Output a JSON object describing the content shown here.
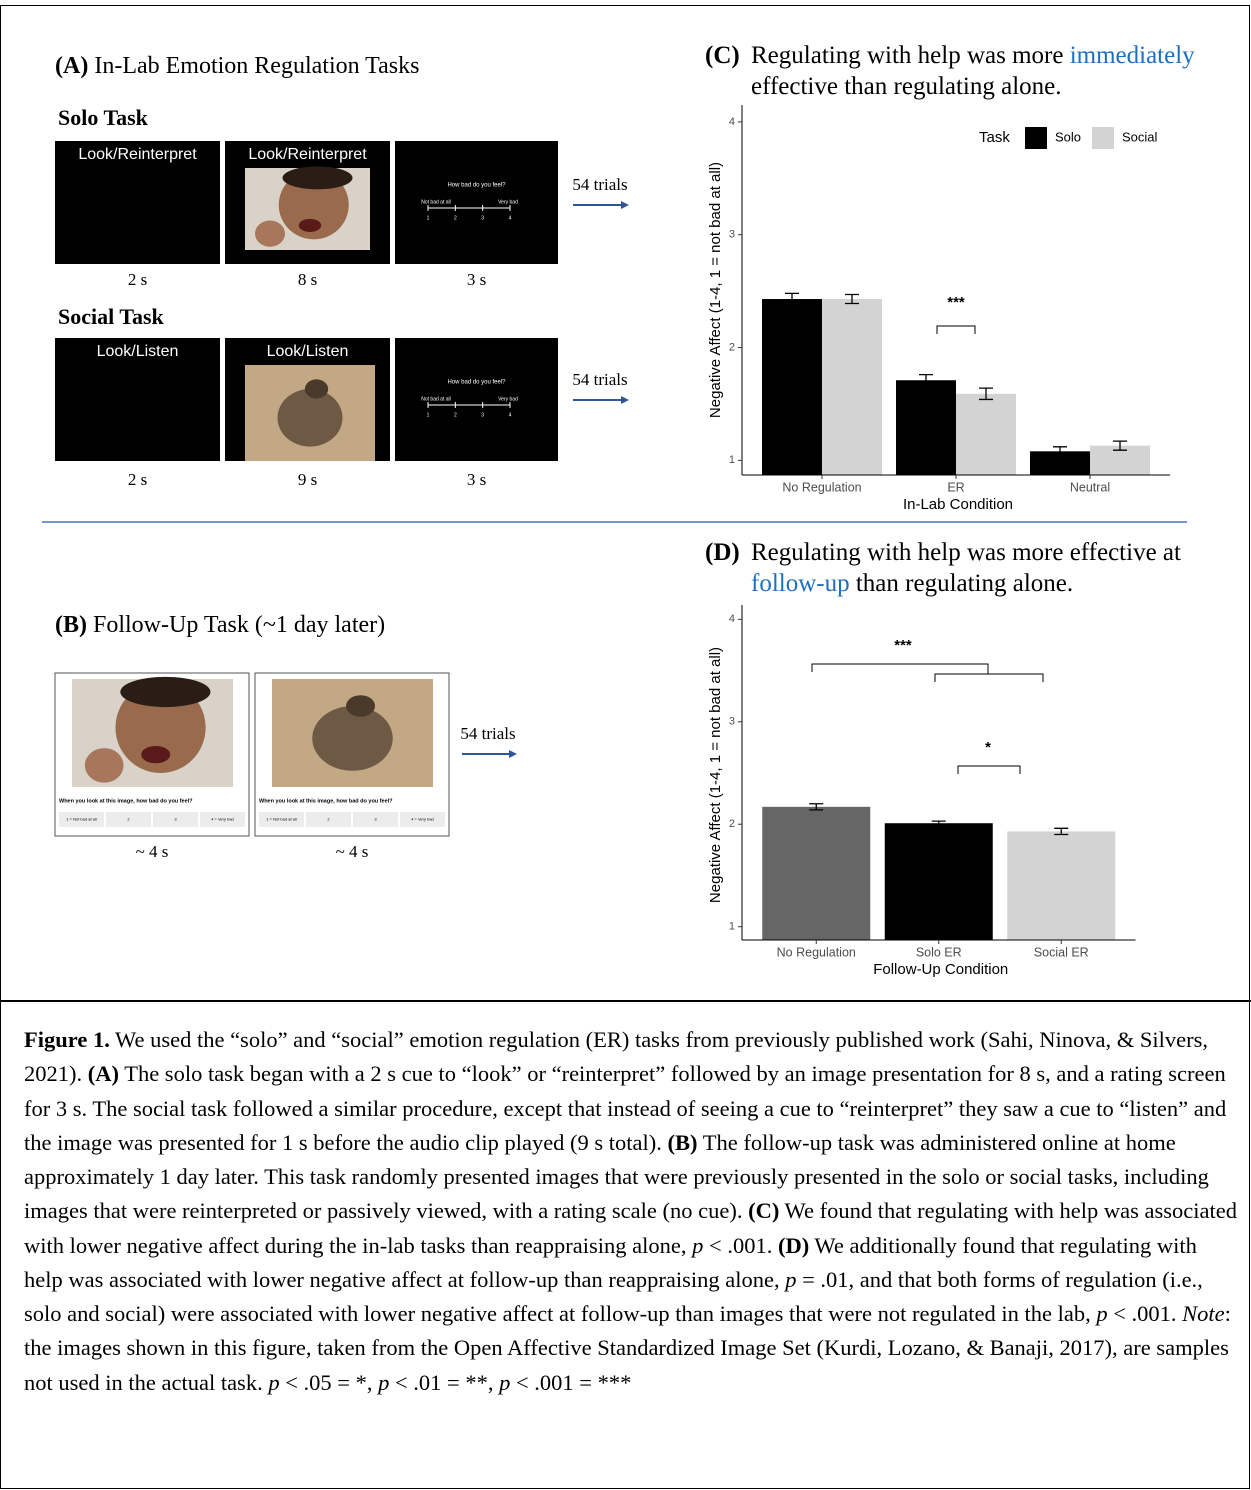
{
  "panel_a": {
    "label": "(A)",
    "title": "In-Lab Emotion Regulation Tasks",
    "tasks": [
      {
        "name": "Solo Task",
        "trials": "54 trials",
        "screens": [
          {
            "cue": "Look/Reinterpret",
            "duration": "2 s"
          },
          {
            "cue": "Look/Reinterpret",
            "duration": "8 s"
          },
          {
            "rating": {
              "question": "How bad do you feel?",
              "low": "Not bad at all",
              "high": "Very bad",
              "points": [
                "1",
                "2",
                "3",
                "4"
              ]
            },
            "duration": "3 s"
          }
        ]
      },
      {
        "name": "Social Task",
        "trials": "54 trials",
        "screens": [
          {
            "cue": "Look/Listen",
            "duration": "2 s"
          },
          {
            "cue": "Look/Listen",
            "duration": "9 s"
          },
          {
            "rating": {
              "question": "How bad do you feel?",
              "low": "Not bad at all",
              "high": "Very bad",
              "points": [
                "1",
                "2",
                "3",
                "4"
              ]
            },
            "duration": "3 s"
          }
        ]
      }
    ]
  },
  "panel_b": {
    "label": "(B)",
    "title": "Follow-Up Task (~1 day later)",
    "trials": "54 trials",
    "cards": [
      {
        "question": "When you look at this image, how bad do you feel?",
        "options": [
          "1 = Not bad at all",
          "2",
          "3",
          "4 = Very bad"
        ],
        "duration": "~ 4 s"
      },
      {
        "question": "When you look at this image, how bad do you feel?",
        "options": [
          "1 = Not bad at all",
          "2",
          "3",
          "4 = Very bad"
        ],
        "duration": "~ 4 s"
      }
    ]
  },
  "chart_data": [
    {
      "type": "bar",
      "label": "(C)",
      "title": [
        {
          "text": "Regulating with help was more "
        },
        {
          "text": "immediately",
          "color": "#1f6fbf"
        },
        {
          "text": " effective than regulating alone."
        }
      ],
      "x_label": "In-Lab Condition",
      "y_label": "Negative Affect (1-4, 1 = not bad at all)",
      "categories": [
        "No Regulation",
        "ER",
        "Neutral"
      ],
      "legend_title": "Task",
      "series": [
        {
          "name": "Solo",
          "color": "#000000",
          "values": [
            2.43,
            1.71,
            1.08
          ],
          "errors": [
            0.05,
            0.05,
            0.04
          ]
        },
        {
          "name": "Social",
          "color": "#d3d3d3",
          "values": [
            2.43,
            1.59,
            1.13
          ],
          "errors": [
            0.04,
            0.05,
            0.04
          ]
        }
      ],
      "ylim": [
        0.87,
        4.15
      ],
      "yticks": [
        1,
        2,
        3,
        4
      ],
      "annotations": [
        "***"
      ]
    },
    {
      "type": "bar",
      "label": "(D)",
      "title": [
        {
          "text": "Regulating with help was more effective at "
        },
        {
          "text": "follow-up",
          "color": "#1f6fbf"
        },
        {
          "text": " than regulating alone."
        }
      ],
      "x_label": "Follow-Up Condition",
      "y_label": "Negative Affect (1-4, 1 = not bad at all)",
      "categories": [
        "No Regulation",
        "Solo ER",
        "Social ER"
      ],
      "values": [
        2.17,
        2.01,
        1.93
      ],
      "errors": [
        0.03,
        0.02,
        0.03
      ],
      "colors": [
        "#666666",
        "#000000",
        "#d3d3d3"
      ],
      "ylim": [
        0.87,
        4.14
      ],
      "yticks": [
        1,
        2,
        3,
        4
      ],
      "annotations": [
        "***",
        "*"
      ]
    }
  ],
  "caption": [
    {
      "text": "Figure 1.",
      "style": "bold"
    },
    {
      "text": " We used the “solo” and “social” emotion regulation (ER) tasks from previously published work (Sahi, Ninova, & Silvers, 2021). "
    },
    {
      "text": "(A)",
      "style": "bold"
    },
    {
      "text": " The solo task began with a 2 s cue to “look” or “reinterpret” followed by an image presentation for 8 s, and a rating screen for 3 s. The social task followed a similar procedure, except that instead of seeing a cue to “reinterpret” they saw a cue to “listen” and the image was presented for 1 s before the audio clip played (9 s total).  "
    },
    {
      "text": "(B)",
      "style": "bold"
    },
    {
      "text": " The follow-up task was administered online at home approximately 1 day later. This task randomly presented images that were previously presented in the solo or social tasks, including images that were reinterpreted or passively viewed, with a rating scale (no cue). "
    },
    {
      "text": "(C)",
      "style": "bold"
    },
    {
      "text": " We found that regulating with help was associated with lower negative affect during the in-lab tasks than reappraising alone, "
    },
    {
      "text": "p",
      "style": "italic"
    },
    {
      "text": " < .001. "
    },
    {
      "text": "(D)",
      "style": "bold"
    },
    {
      "text": " We additionally found that regulating with help was associated with lower negative affect at follow-up than reappraising alone, "
    },
    {
      "text": "p",
      "style": "italic"
    },
    {
      "text": " = .01, and that both forms of regulation (i.e., solo and social) were associated with lower negative affect at follow-up than images that were not regulated in the lab, "
    },
    {
      "text": "p",
      "style": "italic"
    },
    {
      "text": " < .001. "
    },
    {
      "text": "Note",
      "style": "italic"
    },
    {
      "text": ": the images shown in this figure, taken from the Open Affective Standardized Image Set (Kurdi, Lozano, & Banaji, 2017), are samples not used in the actual task. "
    },
    {
      "text": "p",
      "style": "italic"
    },
    {
      "text": " < .05 = *, "
    },
    {
      "text": "p",
      "style": "italic"
    },
    {
      "text": " < .01 = **, "
    },
    {
      "text": "p",
      "style": "italic"
    },
    {
      "text": " < .001 = ***"
    }
  ]
}
